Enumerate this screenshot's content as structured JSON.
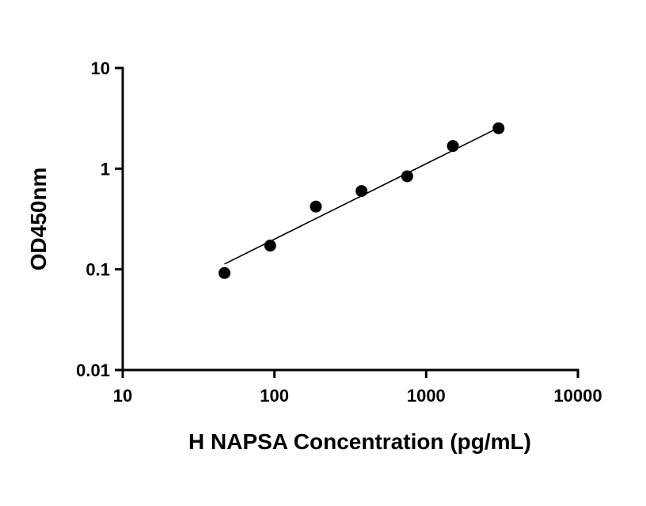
{
  "chart_data": {
    "type": "scatter",
    "title": "",
    "xlabel": "H NAPSA Concentration (pg/mL)",
    "ylabel": "OD450nm",
    "x_scale": "log",
    "y_scale": "log",
    "xlim": [
      10,
      10000
    ],
    "ylim": [
      0.01,
      10
    ],
    "x_ticks": [
      10,
      100,
      1000,
      10000
    ],
    "x_tick_labels": [
      "10",
      "100",
      "1000",
      "10000"
    ],
    "y_ticks": [
      0.01,
      0.1,
      1,
      10
    ],
    "y_tick_labels": [
      "0.01",
      "0.1",
      "1",
      "10"
    ],
    "grid": false,
    "series": [
      {
        "points": [
          {
            "x": 46.875,
            "y": 0.092
          },
          {
            "x": 93.75,
            "y": 0.172
          },
          {
            "x": 187.5,
            "y": 0.42
          },
          {
            "x": 375,
            "y": 0.6
          },
          {
            "x": 750,
            "y": 0.84
          },
          {
            "x": 1500,
            "y": 1.68
          },
          {
            "x": 3000,
            "y": 2.52
          }
        ],
        "fit_line": [
          {
            "x": 46.875,
            "y": 0.113
          },
          {
            "x": 3000,
            "y": 2.55
          }
        ],
        "marker_color": "#000000",
        "line_color": "#000000"
      }
    ]
  }
}
